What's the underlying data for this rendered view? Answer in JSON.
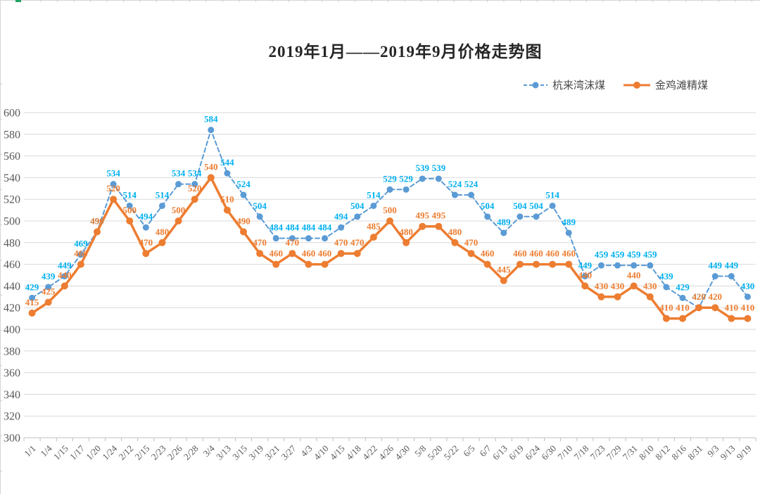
{
  "sheet": {
    "edge_color": "#d6d6d6",
    "selection_mark_color": "#21a366"
  },
  "chart_data": {
    "type": "line",
    "title": "2019年1月——2019年9月价格走势图",
    "categories": [
      "1/1",
      "1/4",
      "1/15",
      "1/17",
      "1/20",
      "1/24",
      "2/12",
      "2/15",
      "2/23",
      "2/26",
      "2/28",
      "3/4",
      "3/13",
      "3/15",
      "3/19",
      "3/21",
      "3/27",
      "4/3",
      "4/10",
      "4/15",
      "4/18",
      "4/22",
      "4/26",
      "4/30",
      "5/8",
      "5/20",
      "5/22",
      "6/5",
      "6/7",
      "6/13",
      "6/19",
      "6/24",
      "6/30",
      "7/10",
      "7/18",
      "7/23",
      "7/29",
      "7/31",
      "8/10",
      "8/12",
      "8/16",
      "8/31",
      "9/3",
      "9/13",
      "9/19"
    ],
    "series": [
      {
        "name": "杭来湾沫煤",
        "color": "#5B9BD5",
        "label_color": "#00B0F0",
        "line_style": "dashed",
        "marker": "circle",
        "values": [
          429,
          439,
          449,
          469,
          490,
          534,
          514,
          494,
          514,
          534,
          534,
          584,
          544,
          524,
          504,
          484,
          484,
          484,
          484,
          494,
          504,
          514,
          529,
          529,
          539,
          539,
          524,
          524,
          504,
          489,
          504,
          504,
          514,
          489,
          449,
          459,
          459,
          459,
          459,
          439,
          429,
          420,
          449,
          449,
          430
        ]
      },
      {
        "name": "金鸡滩精煤",
        "color": "#ED7D31",
        "label_color": "#ED7D31",
        "line_style": "solid",
        "marker": "circle",
        "values": [
          415,
          425,
          440,
          460,
          490,
          520,
          500,
          470,
          480,
          500,
          520,
          540,
          510,
          490,
          470,
          460,
          470,
          460,
          460,
          470,
          470,
          485,
          500,
          480,
          495,
          495,
          480,
          470,
          460,
          445,
          460,
          460,
          460,
          460,
          440,
          430,
          430,
          440,
          430,
          410,
          410,
          420,
          420,
          410,
          410
        ]
      }
    ],
    "ylim": [
      300,
      600
    ],
    "yticks": [
      300,
      320,
      340,
      360,
      380,
      400,
      420,
      440,
      460,
      480,
      500,
      520,
      540,
      560,
      580,
      600
    ],
    "grid": true,
    "data_labels": true,
    "legend_position": "top-right",
    "style": {
      "grid_color": "#D9D9D9",
      "axis_color": "#BFBFBF",
      "axis_text_color": "#595959"
    }
  }
}
